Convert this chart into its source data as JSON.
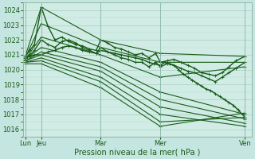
{
  "xlabel": "Pression niveau de la mer( hPa )",
  "bg_color": "#c5e5e0",
  "plot_bg_color": "#d0ece5",
  "grid_color_major": "#a8cfc0",
  "grid_color_minor": "#b8ddd0",
  "line_color": "#1a5c1a",
  "ylim": [
    1015.5,
    1024.5
  ],
  "yticks": [
    1016,
    1017,
    1018,
    1019,
    1020,
    1021,
    1022,
    1023,
    1024
  ],
  "xtick_labels": [
    "Lun",
    "Jeu",
    "Mar",
    "Mer",
    "Ven"
  ],
  "xtick_positions": [
    0.01,
    0.08,
    0.34,
    0.6,
    0.97
  ],
  "xlim": [
    0.0,
    1.0
  ],
  "lines": [
    {
      "x": [
        0.01,
        0.08,
        0.34,
        0.6,
        0.97
      ],
      "y": [
        1020.9,
        1024.2,
        1022.0,
        1021.1,
        1020.9
      ],
      "lw": 0.8
    },
    {
      "x": [
        0.01,
        0.08,
        0.34,
        0.6,
        0.97
      ],
      "y": [
        1020.8,
        1023.1,
        1021.5,
        1020.5,
        1020.5
      ],
      "lw": 0.8
    },
    {
      "x": [
        0.01,
        0.08,
        0.34,
        0.6,
        0.97
      ],
      "y": [
        1020.7,
        1022.2,
        1021.0,
        1019.5,
        1020.2
      ],
      "lw": 0.8
    },
    {
      "x": [
        0.01,
        0.08,
        0.34,
        0.6,
        0.97
      ],
      "y": [
        1020.7,
        1021.5,
        1020.5,
        1018.5,
        1017.0
      ],
      "lw": 0.8
    },
    {
      "x": [
        0.01,
        0.08,
        0.34,
        0.6,
        0.97
      ],
      "y": [
        1020.6,
        1021.2,
        1020.2,
        1018.0,
        1016.7
      ],
      "lw": 0.8
    },
    {
      "x": [
        0.01,
        0.08,
        0.34,
        0.6,
        0.97
      ],
      "y": [
        1020.6,
        1021.0,
        1019.9,
        1017.5,
        1016.4
      ],
      "lw": 0.8
    },
    {
      "x": [
        0.01,
        0.08,
        0.34,
        0.6,
        0.97
      ],
      "y": [
        1020.5,
        1020.8,
        1019.5,
        1017.0,
        1016.2
      ],
      "lw": 0.8
    },
    {
      "x": [
        0.01,
        0.08,
        0.34,
        0.6,
        0.97
      ],
      "y": [
        1020.5,
        1020.6,
        1019.2,
        1016.5,
        1016.8
      ],
      "lw": 0.8
    },
    {
      "x": [
        0.01,
        0.08,
        0.34,
        0.6,
        0.97
      ],
      "y": [
        1020.4,
        1020.4,
        1018.8,
        1016.2,
        1017.1
      ],
      "lw": 0.8
    }
  ],
  "detailed_lines": [
    {
      "x": [
        0.01,
        0.03,
        0.05,
        0.08,
        0.11,
        0.14,
        0.17,
        0.2,
        0.23,
        0.26,
        0.29,
        0.32,
        0.34,
        0.37,
        0.4,
        0.43,
        0.46,
        0.49,
        0.52,
        0.55,
        0.58,
        0.6,
        0.63,
        0.66,
        0.69,
        0.72,
        0.75,
        0.78,
        0.81,
        0.84,
        0.87,
        0.9,
        0.93,
        0.97
      ],
      "y": [
        1020.9,
        1021.3,
        1021.7,
        1024.2,
        1022.9,
        1022.0,
        1022.2,
        1021.9,
        1021.7,
        1021.6,
        1021.4,
        1021.3,
        1022.0,
        1021.8,
        1021.5,
        1021.4,
        1021.2,
        1021.0,
        1021.1,
        1020.8,
        1021.1,
        1020.5,
        1020.6,
        1020.7,
        1020.5,
        1020.3,
        1020.1,
        1019.8,
        1019.7,
        1019.6,
        1019.8,
        1020.2,
        1020.6,
        1020.9
      ],
      "lw": 1.0
    },
    {
      "x": [
        0.01,
        0.03,
        0.05,
        0.08,
        0.11,
        0.14,
        0.17,
        0.2,
        0.23,
        0.26,
        0.29,
        0.32,
        0.34,
        0.37,
        0.4,
        0.43,
        0.46,
        0.49,
        0.52,
        0.55,
        0.58,
        0.6,
        0.63,
        0.66,
        0.69,
        0.72,
        0.75,
        0.78,
        0.81,
        0.84,
        0.87,
        0.9,
        0.93,
        0.97
      ],
      "y": [
        1020.8,
        1021.0,
        1021.3,
        1022.0,
        1021.7,
        1021.5,
        1021.9,
        1022.0,
        1021.8,
        1021.5,
        1021.3,
        1021.1,
        1021.5,
        1021.2,
        1021.0,
        1020.8,
        1020.7,
        1020.5,
        1020.5,
        1020.2,
        1020.5,
        1020.2,
        1020.4,
        1020.3,
        1020.1,
        1019.9,
        1019.8,
        1019.6,
        1019.4,
        1019.2,
        1019.5,
        1019.8,
        1020.1,
        1020.5
      ],
      "lw": 1.0
    },
    {
      "x": [
        0.01,
        0.03,
        0.05,
        0.08,
        0.11,
        0.14,
        0.17,
        0.2,
        0.23,
        0.26,
        0.29,
        0.32,
        0.34,
        0.37,
        0.4,
        0.43,
        0.46,
        0.49,
        0.52,
        0.55,
        0.57,
        0.6,
        0.62,
        0.64,
        0.66,
        0.68,
        0.7,
        0.72,
        0.74,
        0.76,
        0.78,
        0.8,
        0.82,
        0.84,
        0.86,
        0.88,
        0.9,
        0.92,
        0.94,
        0.97
      ],
      "y": [
        1020.8,
        1020.9,
        1021.0,
        1021.0,
        1021.2,
        1021.3,
        1021.5,
        1021.6,
        1021.5,
        1021.3,
        1021.2,
        1021.1,
        1021.3,
        1021.2,
        1021.1,
        1021.0,
        1020.9,
        1020.8,
        1020.7,
        1020.5,
        1020.4,
        1020.3,
        1020.5,
        1020.4,
        1020.3,
        1020.0,
        1019.7,
        1019.5,
        1019.3,
        1019.1,
        1018.9,
        1018.7,
        1018.6,
        1018.4,
        1018.2,
        1018.0,
        1017.8,
        1017.6,
        1017.3,
        1016.8
      ],
      "lw": 1.1
    }
  ]
}
